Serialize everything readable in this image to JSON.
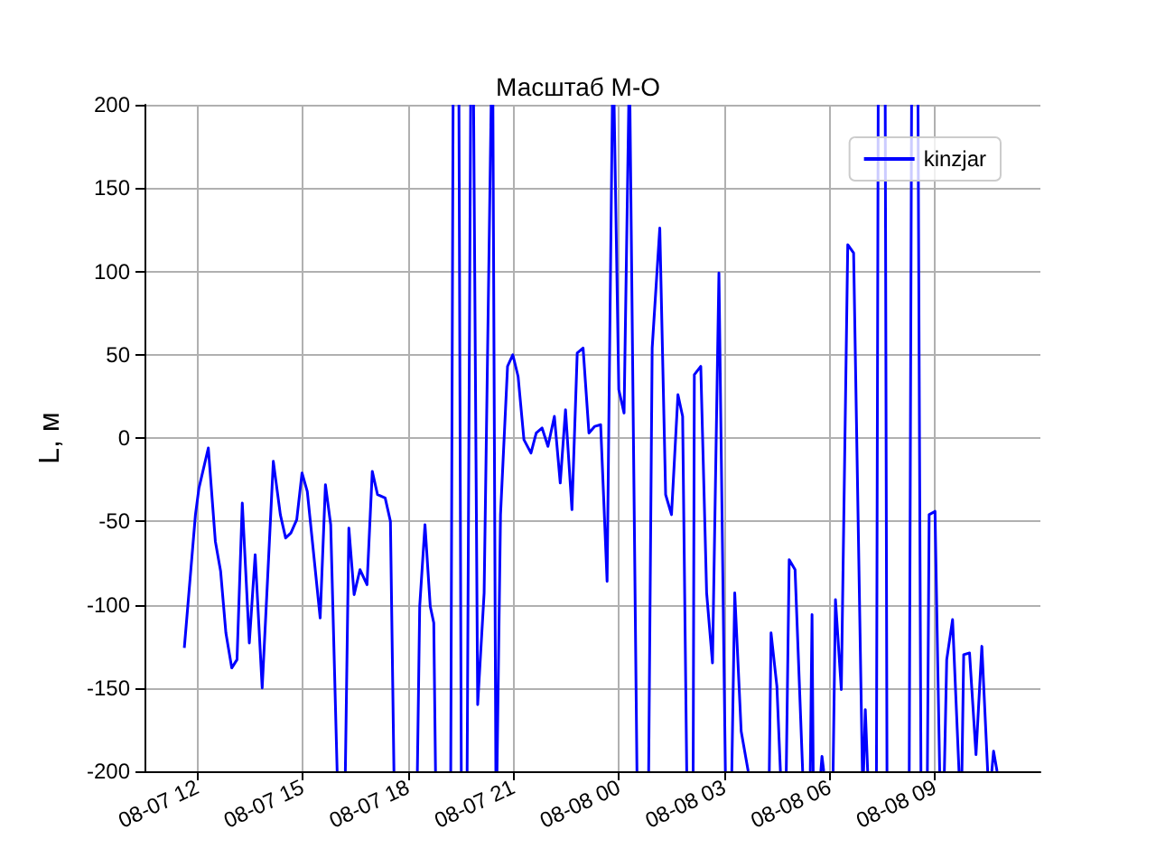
{
  "chart_data": {
    "type": "line",
    "title": "Масштаб М-О",
    "ylabel": "L, м",
    "xlim": [
      "--08-07T10:30",
      "--08-08T12:00"
    ],
    "xticks": [
      {
        "value": "--08-07T12:00",
        "label": "08-07 12"
      },
      {
        "value": "--08-07T15:00",
        "label": "08-07 15"
      },
      {
        "value": "--08-07T18:00",
        "label": "08-07 18"
      },
      {
        "value": "--08-07T21:00",
        "label": "08-07 21"
      },
      {
        "value": "--08-08T00:00",
        "label": "08-08 00"
      },
      {
        "value": "--08-08T03:00",
        "label": "08-08 03"
      },
      {
        "value": "--08-08T06:00",
        "label": "08-08 06"
      },
      {
        "value": "--08-08T09:00",
        "label": "08-08 09"
      }
    ],
    "ylim": [
      -200,
      200
    ],
    "yticks": [
      -200,
      -150,
      -100,
      -50,
      0,
      50,
      100,
      150,
      200
    ],
    "grid": true,
    "legend": "top right",
    "x": [
      "--08-07T11:38",
      "--08-07T11:57",
      "--08-07T12:03",
      "--08-07T12:19",
      "--08-07T12:31",
      "--08-07T12:40",
      "--08-07T12:49",
      "--08-07T12:59",
      "--08-07T13:08",
      "--08-07T13:17",
      "--08-07T13:29",
      "--08-07T13:39",
      "--08-07T13:51",
      "--08-07T14:00",
      "--08-07T14:10",
      "--08-07T14:22",
      "--08-07T14:31",
      "--08-07T14:40",
      "--08-07T14:50",
      "--08-07T14:59",
      "--08-07T15:08",
      "--08-07T15:30",
      "--08-07T15:39",
      "--08-07T15:48",
      "--08-07T15:59",
      "--08-07T16:06",
      "--08-07T16:13",
      "--08-07T16:19",
      "--08-07T16:28",
      "--08-07T16:38",
      "--08-07T16:50",
      "--08-07T16:59",
      "--08-07T17:08",
      "--08-07T17:21",
      "--08-07T17:30",
      "--08-07T17:36",
      "--08-07T17:50",
      "--08-07T18:16",
      "--08-07T18:20",
      "--08-07T18:29",
      "--08-07T18:38",
      "--08-07T18:44",
      "--08-07T18:47",
      "--08-07T19:00",
      "--08-07T19:13",
      "--08-07T19:17",
      "--08-07T19:22",
      "--08-07T19:27",
      "--08-07T19:31",
      "--08-07T19:36",
      "--08-07T19:41",
      "--08-07T19:47",
      "--08-07T19:50",
      "--08-07T19:52",
      "--08-07T19:59",
      "--08-07T20:10",
      "--08-07T20:22",
      "--08-07T20:24",
      "--08-07T20:25",
      "--08-07T20:30",
      "--08-07T20:31",
      "--08-07T20:32",
      "--08-07T20:38",
      "--08-07T20:50",
      "--08-07T20:59",
      "--08-07T21:08",
      "--08-07T21:18",
      "--08-07T21:30",
      "--08-07T21:39",
      "--08-07T21:49",
      "--08-07T21:59",
      "--08-07T22:10",
      "--08-07T22:20",
      "--08-07T22:29",
      "--08-07T22:40",
      "--08-07T22:49",
      "--08-07T22:59",
      "--08-07T23:09",
      "--08-07T23:19",
      "--08-07T23:29",
      "--08-07T23:40",
      "--08-07T23:49",
      "--08-07T23:50",
      "--08-07T23:52",
      "--08-08T00:00",
      "--08-08T00:09",
      "--08-08T00:17",
      "--08-08T00:18",
      "--08-08T00:19",
      "--08-08T00:31",
      "--08-08T00:40",
      "--08-08T00:51",
      "--08-08T00:57",
      "--08-08T01:10",
      "--08-08T01:20",
      "--08-08T01:30",
      "--08-08T01:41",
      "--08-08T01:49",
      "--08-08T01:56",
      "--08-08T02:00",
      "--08-08T02:07",
      "--08-08T02:09",
      "--08-08T02:20",
      "--08-08T02:30",
      "--08-08T02:40",
      "--08-08T02:51",
      "--08-08T03:02",
      "--08-08T03:08",
      "--08-08T03:13",
      "--08-08T03:18",
      "--08-08T03:29",
      "--08-08T03:41",
      "--08-08T04:00",
      "--08-08T04:17",
      "--08-08T04:20",
      "--08-08T04:30",
      "--08-08T04:36",
      "--08-08T04:40",
      "--08-08T04:46",
      "--08-08T04:51",
      "--08-08T05:01",
      "--08-08T05:14",
      "--08-08T05:20",
      "--08-08T05:27",
      "--08-08T05:30",
      "--08-08T05:32",
      "--08-08T05:38",
      "--08-08T05:45",
      "--08-08T05:47",
      "--08-08T05:50",
      "--08-08T06:00",
      "--08-08T06:06",
      "--08-08T06:10",
      "--08-08T06:20",
      "--08-08T06:31",
      "--08-08T06:41",
      "--08-08T06:56",
      "--08-08T06:57",
      "--08-08T06:58",
      "--08-08T07:01",
      "--08-08T07:05",
      "--08-08T07:12",
      "--08-08T07:20",
      "--08-08T07:23",
      "--08-08T07:30",
      "--08-08T07:35",
      "--08-08T07:38",
      "--08-08T08:00",
      "--08-08T08:16",
      "--08-08T08:20",
      "--08-08T08:25",
      "--08-08T08:31",
      "--08-08T08:36",
      "--08-08T08:40",
      "--08-08T08:47",
      "--08-08T08:50",
      "--08-08T09:00",
      "--08-08T09:08",
      "--08-08T09:12",
      "--08-08T09:16",
      "--08-08T09:20",
      "--08-08T09:30",
      "--08-08T09:41",
      "--08-08T09:43",
      "--08-08T09:46",
      "--08-08T09:49",
      "--08-08T09:59",
      "--08-08T10:10",
      "--08-08T10:20",
      "--08-08T10:30",
      "--08-08T10:33",
      "--08-08T10:37",
      "--08-08T10:40",
      "--08-08T10:46"
    ],
    "series": [
      {
        "name": "kinzjar",
        "color": "#0000ff",
        "values": [
          -126,
          -46,
          -30,
          -6,
          -62,
          -80,
          -117,
          -138,
          -133,
          -39,
          -123,
          -70,
          -150,
          -86,
          -14,
          -46,
          -60,
          -57,
          -49,
          -21,
          -32,
          -108,
          -28,
          -52,
          -200,
          null,
          -200,
          -54,
          -94,
          -79,
          -88,
          -20,
          -34,
          -36,
          -50,
          -200,
          null,
          -200,
          -101,
          -52,
          -101,
          -111,
          -200,
          null,
          -200,
          200,
          null,
          200,
          -200,
          null,
          -200,
          200,
          null,
          200,
          -160,
          -93,
          200,
          null,
          200,
          -200,
          null,
          -200,
          -46,
          43,
          50,
          37,
          -1,
          -9,
          3,
          6,
          -5,
          13,
          -27,
          17,
          -43,
          51,
          54,
          3,
          7,
          8,
          -86,
          200,
          null,
          200,
          29,
          15,
          200,
          null,
          200,
          -200,
          null,
          -200,
          54,
          126,
          -34,
          -46,
          26,
          13,
          -200,
          null,
          -200,
          38,
          43,
          -93,
          -135,
          99,
          -200,
          null,
          -200,
          -93,
          -176,
          -200,
          null,
          -200,
          -117,
          -149,
          -200,
          null,
          -200,
          -73,
          -79,
          -200,
          null,
          -200,
          -106,
          -200,
          null,
          -200,
          -191,
          -200,
          null,
          -200,
          -97,
          -151,
          116,
          111,
          -200,
          null,
          -200,
          -163,
          -200,
          null,
          -200,
          200,
          null,
          200,
          -200,
          null,
          -200,
          200,
          null,
          200,
          -200,
          null,
          -200,
          -46,
          -44,
          -200,
          null,
          -200,
          -133,
          -109,
          -200,
          null,
          -200,
          -130,
          -129,
          -190,
          -125,
          -200,
          null,
          -200,
          -188,
          -200
        ]
      }
    ]
  }
}
